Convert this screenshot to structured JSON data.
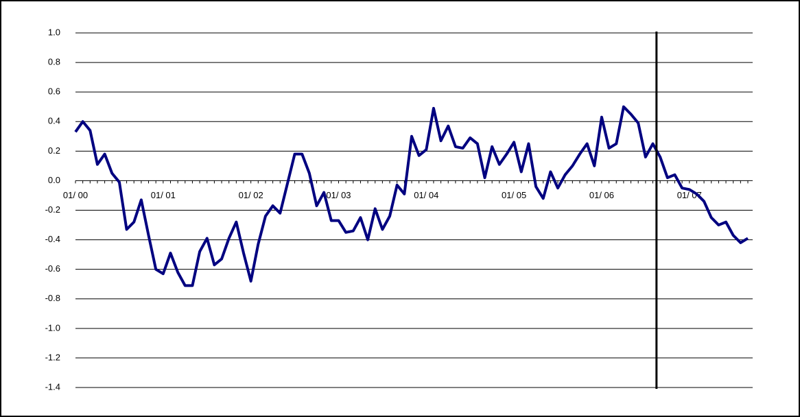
{
  "chart_data": {
    "type": "line",
    "categories": [
      "01/ 00",
      null,
      null,
      null,
      null,
      null,
      null,
      null,
      null,
      null,
      null,
      null,
      "01/ 01",
      null,
      null,
      null,
      null,
      null,
      null,
      null,
      null,
      null,
      null,
      null,
      "01/ 02",
      null,
      null,
      null,
      null,
      null,
      null,
      null,
      null,
      null,
      null,
      null,
      "01/ 03",
      null,
      null,
      null,
      null,
      null,
      null,
      null,
      null,
      null,
      null,
      null,
      "01/ 04",
      null,
      null,
      null,
      null,
      null,
      null,
      null,
      null,
      null,
      null,
      null,
      "01/ 05",
      null,
      null,
      null,
      null,
      null,
      null,
      null,
      null,
      null,
      null,
      null,
      "01/ 06",
      null,
      null,
      null,
      null,
      null,
      null,
      null,
      null,
      null,
      null,
      null,
      "01/ 07",
      null,
      null,
      null,
      null,
      null,
      null,
      null,
      null
    ],
    "values": [
      0.33,
      0.4,
      0.34,
      0.11,
      0.18,
      0.05,
      -0.01,
      -0.33,
      -0.28,
      -0.13,
      -0.37,
      -0.6,
      -0.63,
      -0.49,
      -0.62,
      -0.71,
      -0.71,
      -0.48,
      -0.39,
      -0.57,
      -0.53,
      -0.39,
      -0.28,
      -0.49,
      -0.68,
      -0.43,
      -0.24,
      -0.17,
      -0.22,
      -0.02,
      0.18,
      0.18,
      0.05,
      -0.17,
      -0.08,
      -0.27,
      -0.27,
      -0.35,
      -0.34,
      -0.25,
      -0.4,
      -0.19,
      -0.33,
      -0.24,
      -0.03,
      -0.09,
      0.3,
      0.17,
      0.21,
      0.49,
      0.27,
      0.37,
      0.23,
      0.22,
      0.29,
      0.25,
      0.02,
      0.23,
      0.11,
      0.18,
      0.26,
      0.06,
      0.25,
      -0.04,
      -0.12,
      0.06,
      -0.05,
      0.04,
      0.1,
      0.18,
      0.25,
      0.1,
      0.43,
      0.22,
      0.25,
      0.5,
      0.45,
      0.39,
      0.16,
      0.25,
      0.16,
      0.02,
      0.04,
      -0.05,
      -0.06,
      -0.09,
      -0.14,
      -0.25,
      -0.3,
      -0.28,
      -0.37,
      -0.42,
      -0.39
    ],
    "color": "#000080",
    "ylim": [
      -1.4,
      1.0
    ],
    "yticks": [
      -1.4,
      -1.2,
      {
        "value": -1.0,
        "label": "-1.0"
      },
      -0.8,
      -0.6,
      -0.4,
      -0.2,
      {
        "value": 0,
        "label": "0.0"
      },
      0.2,
      0.4,
      0.6,
      0.8,
      {
        "value": 1.0,
        "label": "1.0"
      }
    ],
    "grid": true,
    "reference_line": {
      "x": 79.5,
      "color": "#000000"
    }
  }
}
